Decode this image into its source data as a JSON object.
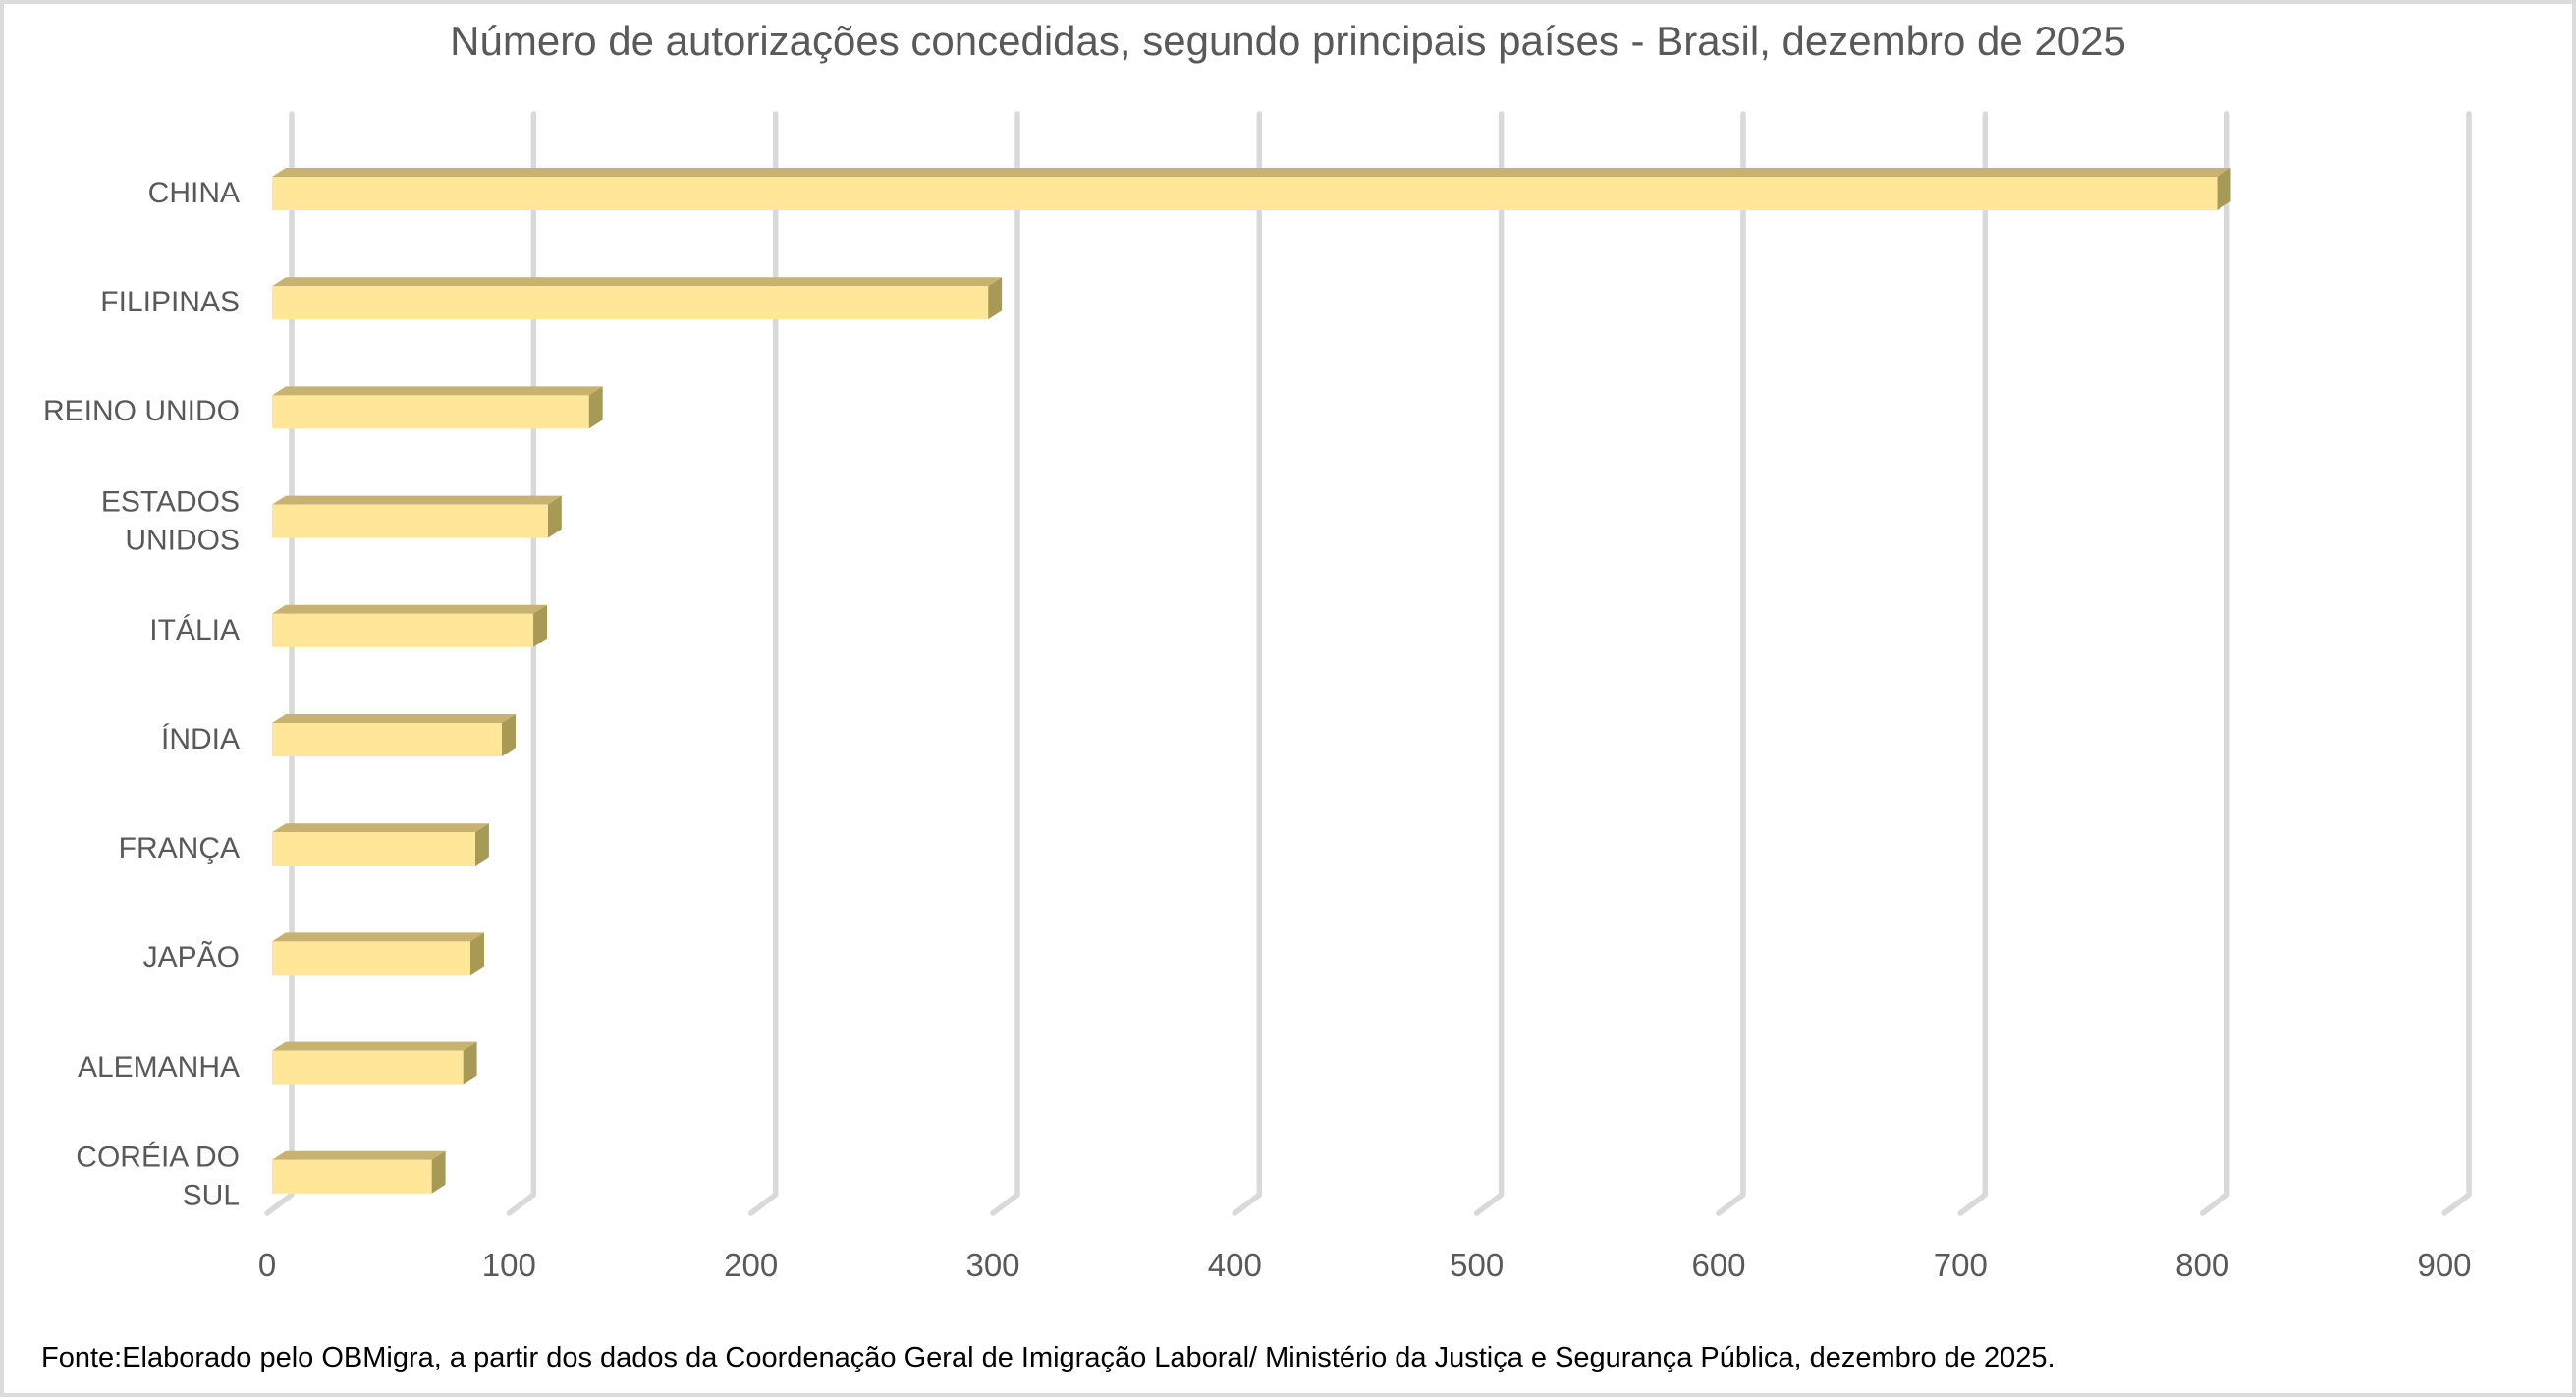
{
  "chart_data": {
    "type": "bar",
    "orientation": "horizontal",
    "style": "3d-cuboid",
    "title": "Número de autorizações concedidas, segundo principais países - Brasil, dezembro de 2025",
    "categories": [
      "CHINA",
      "FILIPINAS",
      "REINO UNIDO",
      "ESTADOS UNIDOS",
      "ITÁLIA",
      "ÍNDIA",
      "FRANÇA",
      "JAPÃO",
      "ALEMANHA",
      "CORÉIA DO SUL"
    ],
    "values": [
      804,
      296,
      131,
      114,
      108,
      95,
      84,
      82,
      79,
      66
    ],
    "xlabel": "",
    "ylabel": "",
    "xlim": [
      0,
      900
    ],
    "xticks": [
      0,
      100,
      200,
      300,
      400,
      500,
      600,
      700,
      800,
      900
    ],
    "grid": true,
    "legend": false,
    "value_labels_shown": false
  },
  "source_note": "Fonte:Elaborado pelo OBMigra, a partir dos dados da Coordenação Geral de Imigração Laboral/ Ministério da Justiça e Segurança Pública, dezembro de 2025.",
  "colors": {
    "bar_face": "#FFE699",
    "bar_top": "#C7B272",
    "bar_side": "#A69A55",
    "gridline": "#D9D9D9",
    "axis_text": "#595959",
    "title_text": "#595959",
    "footer_text": "#000000",
    "frame_border": "#DCDCDC"
  }
}
